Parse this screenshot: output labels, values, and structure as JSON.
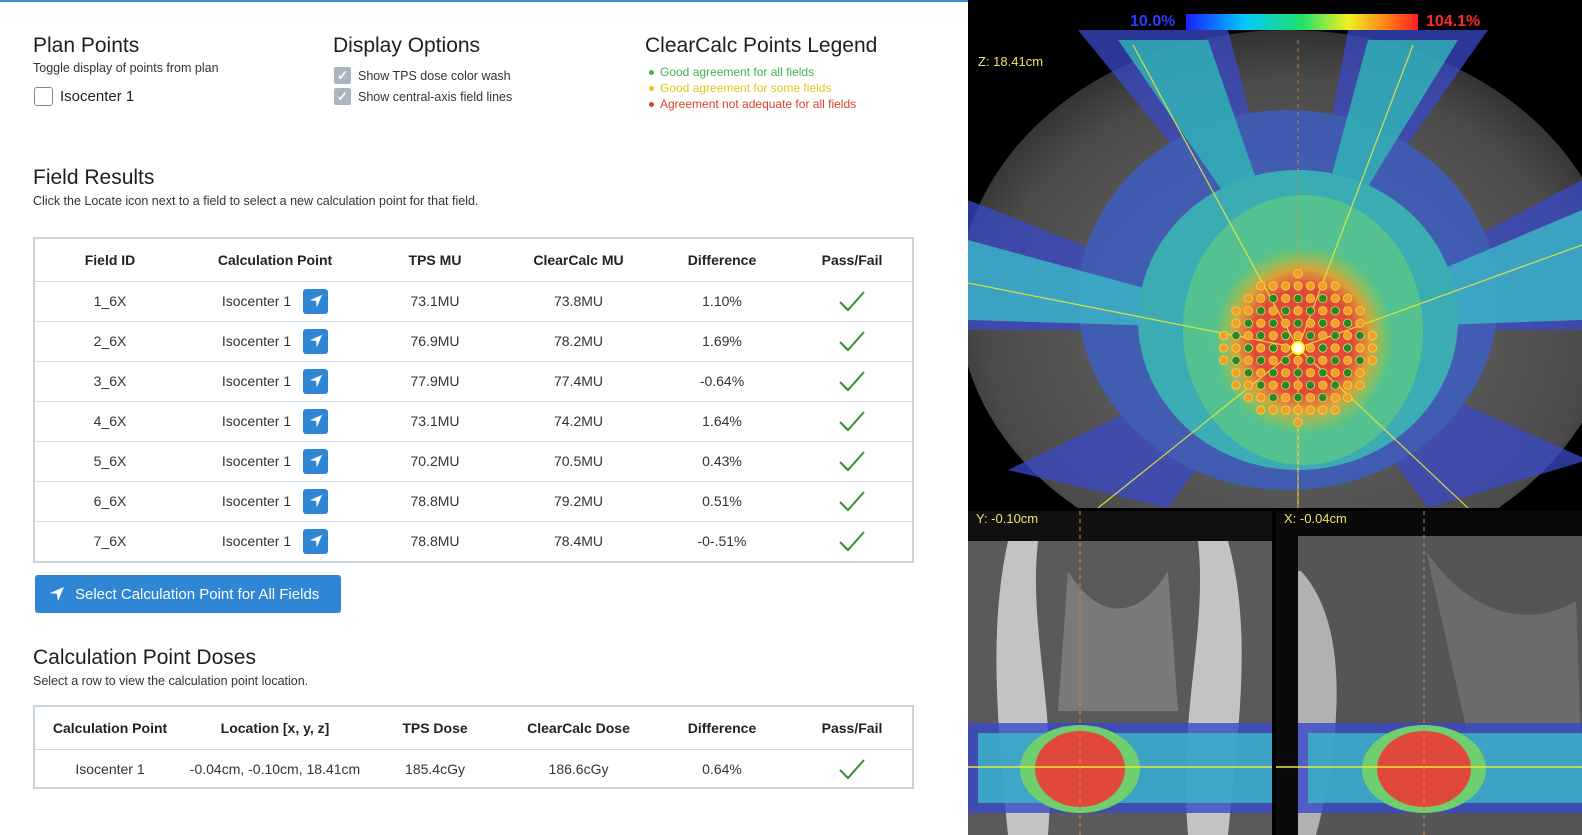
{
  "plan_points": {
    "title": "Plan Points",
    "subtitle": "Toggle display of points from plan",
    "isocenter_label": "Isocenter 1"
  },
  "display_options": {
    "title": "Display Options",
    "option1": "Show TPS dose color wash",
    "option2": "Show central-axis field lines"
  },
  "legend": {
    "title": "ClearCalc Points Legend",
    "items": [
      {
        "label": "Good agreement for all fields",
        "color": "#3fb34f"
      },
      {
        "label": "Good agreement for some fields",
        "color": "#e6c619"
      },
      {
        "label": "Agreement not adequate for all fields",
        "color": "#d9412b"
      }
    ]
  },
  "field_results": {
    "title": "Field Results",
    "subtitle": "Click the Locate icon next to a field to select a new calculation point for that field.",
    "headers": [
      "Field ID",
      "Calculation Point",
      "TPS MU",
      "ClearCalc MU",
      "Difference",
      "Pass/Fail"
    ],
    "rows": [
      {
        "field": "1_6X",
        "point": "Isocenter 1",
        "tps": "73.1MU",
        "cc": "73.8MU",
        "diff": "1.10%"
      },
      {
        "field": "2_6X",
        "point": "Isocenter 1",
        "tps": "76.9MU",
        "cc": "78.2MU",
        "diff": "1.69%"
      },
      {
        "field": "3_6X",
        "point": "Isocenter 1",
        "tps": "77.9MU",
        "cc": "77.4MU",
        "diff": "-0.64%"
      },
      {
        "field": "4_6X",
        "point": "Isocenter 1",
        "tps": "73.1MU",
        "cc": "74.2MU",
        "diff": "1.64%"
      },
      {
        "field": "5_6X",
        "point": "Isocenter 1",
        "tps": "70.2MU",
        "cc": "70.5MU",
        "diff": "0.43%"
      },
      {
        "field": "6_6X",
        "point": "Isocenter 1",
        "tps": "78.8MU",
        "cc": "79.2MU",
        "diff": "0.51%"
      },
      {
        "field": "7_6X",
        "point": "Isocenter 1",
        "tps": "78.8MU",
        "cc": "78.4MU",
        "diff": "-0-.51%"
      }
    ],
    "select_all_label": "Select Calculation Point for All Fields"
  },
  "point_doses": {
    "title": "Calculation Point Doses",
    "subtitle": "Select a row to view the calculation point location.",
    "headers": [
      "Calculation Point",
      "Location [x, y, z]",
      "TPS  Dose",
      "ClearCalc Dose",
      "Difference",
      "Pass/Fail"
    ],
    "rows": [
      {
        "point": "Isocenter 1",
        "location": "-0.04cm, -0.10cm, 18.41cm",
        "tps": "185.4cGy",
        "cc": "186.6cGy",
        "diff": "0.64%"
      }
    ]
  },
  "viewer": {
    "colorbar_min": "10.0%",
    "colorbar_max": "104.1%",
    "axial_label": "Z: 18.41cm",
    "coronal_label": "Y: -0.10cm",
    "sagittal_label": "X: -0.04cm"
  },
  "colors": {
    "accent": "#2f86d5",
    "pass_check": "#3a8a3a",
    "min_label": "#2b3cff",
    "max_label": "#ff2a2a"
  }
}
